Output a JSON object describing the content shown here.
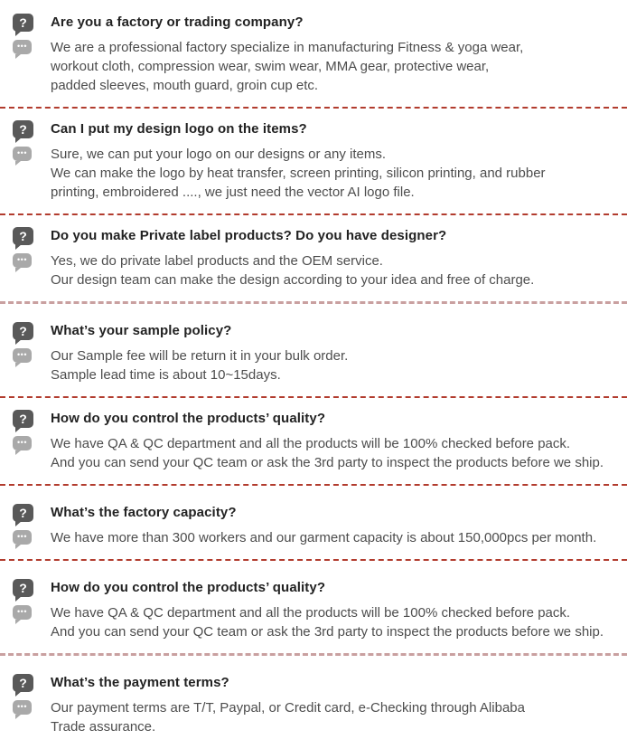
{
  "colors": {
    "question_text": "#222222",
    "answer_text": "#4d4d4d",
    "question_icon_bg": "#595959",
    "answer_icon_bg": "#a9a9a9",
    "separator_red": "#b23c2e",
    "separator_pink": "#c9a0a0",
    "background": "#ffffff"
  },
  "icons": {
    "question_glyph": "?",
    "answer_glyph": "•••"
  },
  "sections": [
    {
      "question": "Are you a factory or trading company?",
      "answers": [
        "We are a professional factory specialize in manufacturing Fitness & yoga wear,",
        "workout cloth, compression wear, swim wear, MMA gear, protective wear,",
        "padded sleeves, mouth guard, groin cup etc."
      ],
      "separator": "red"
    },
    {
      "question": "Can I put my design logo on the items?",
      "answers": [
        "Sure, we can put your logo on our designs or any items.",
        "We can make the logo by heat transfer, screen printing, silicon printing, and rubber",
        "printing, embroidered ...., we just need the vector AI logo file."
      ],
      "separator": "red"
    },
    {
      "question": "Do you make Private label products? Do you have designer?",
      "answers": [
        "Yes, we do private label products and the OEM service.",
        "Our design team can make the design according to your idea and free of charge."
      ],
      "separator": "pink"
    },
    {
      "question": "What’s your sample policy?",
      "answers": [
        "Our Sample fee will be return it in your bulk order.",
        "Sample lead time is about 10~15days."
      ],
      "separator": "red"
    },
    {
      "question": "How do you control the products’ quality?",
      "answers": [
        "We have QA & QC department and all the products will be 100% checked before pack.",
        "And you can send your QC team or ask the 3rd party to inspect the products before we ship."
      ],
      "separator": "red"
    },
    {
      "question": "What’s the factory capacity?",
      "answers": [
        "We have more than 300 workers and our garment capacity is about 150,000pcs per month."
      ],
      "separator": "red"
    },
    {
      "question": "How do you control the products’ quality?",
      "answers": [
        "We have QA & QC department and all the products will be 100% checked before pack.",
        "And you can send your QC team or ask the 3rd party to inspect the products before we ship."
      ],
      "separator": "pink"
    },
    {
      "question": "What’s the payment terms?",
      "answers": [
        "Our payment terms are T/T, Paypal, or Credit card, e-Checking through Alibaba",
        "Trade assurance."
      ],
      "separator": "none"
    }
  ]
}
